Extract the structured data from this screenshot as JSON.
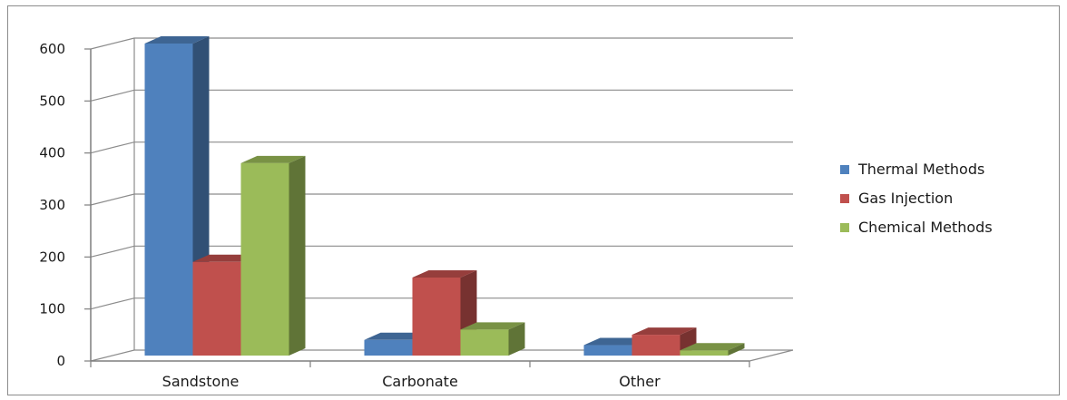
{
  "chart_data": {
    "type": "bar",
    "style": "3d-clustered-column",
    "categories": [
      "Sandstone",
      "Carbonate",
      "Other"
    ],
    "series": [
      {
        "name": "Thermal Methods",
        "color": "#4f81bd",
        "values": [
          600,
          30,
          20
        ]
      },
      {
        "name": "Gas Injection",
        "color": "#c0504d",
        "values": [
          180,
          150,
          40
        ]
      },
      {
        "name": "Chemical Methods",
        "color": "#9bbb59",
        "values": [
          370,
          50,
          10
        ]
      }
    ],
    "yticks": [
      0,
      100,
      200,
      300,
      400,
      500,
      600
    ],
    "ylim": [
      0,
      600
    ],
    "grid": true,
    "legend": "right"
  }
}
